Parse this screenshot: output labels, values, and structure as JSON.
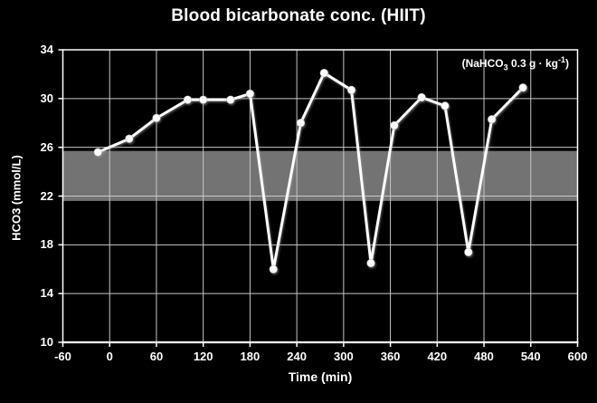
{
  "chart_data": {
    "type": "line",
    "title": "Blood bicarbonate conc. (HIIT)",
    "xlabel": "Time (min)",
    "ylabel": "HCO3 (mmol/L)",
    "annotation": {
      "prefix": "(NaHCO",
      "sub": "3",
      "mid": " 0.3 g · kg",
      "sup": "-1",
      "suffix": ")"
    },
    "xlim": [
      -60,
      600
    ],
    "ylim": [
      10,
      34
    ],
    "xticks": [
      -60,
      0,
      60,
      120,
      180,
      240,
      300,
      360,
      420,
      480,
      540,
      600
    ],
    "yticks": [
      10,
      14,
      18,
      22,
      26,
      30,
      34
    ],
    "grid": true,
    "legend": "none",
    "reference_band": {
      "low": 21.6,
      "high": 25.7,
      "color": "#737373"
    },
    "series": [
      {
        "name": "Blood bicarbonate",
        "color": "#ffffff",
        "x": [
          -15,
          25,
          60,
          100,
          120,
          155,
          180,
          210,
          245,
          275,
          310,
          335,
          365,
          400,
          430,
          460,
          490,
          530
        ],
        "y": [
          25.6,
          26.7,
          28.4,
          29.9,
          29.9,
          29.9,
          30.4,
          16.0,
          28.0,
          32.1,
          30.7,
          16.5,
          27.8,
          30.1,
          29.4,
          17.4,
          28.3,
          30.9
        ]
      }
    ],
    "colors": {
      "background": "#000000",
      "text": "#ffffff",
      "grid": "#c8c8c8",
      "axis": "#ffffff",
      "line": "#ffffff",
      "band": "#737373"
    }
  }
}
